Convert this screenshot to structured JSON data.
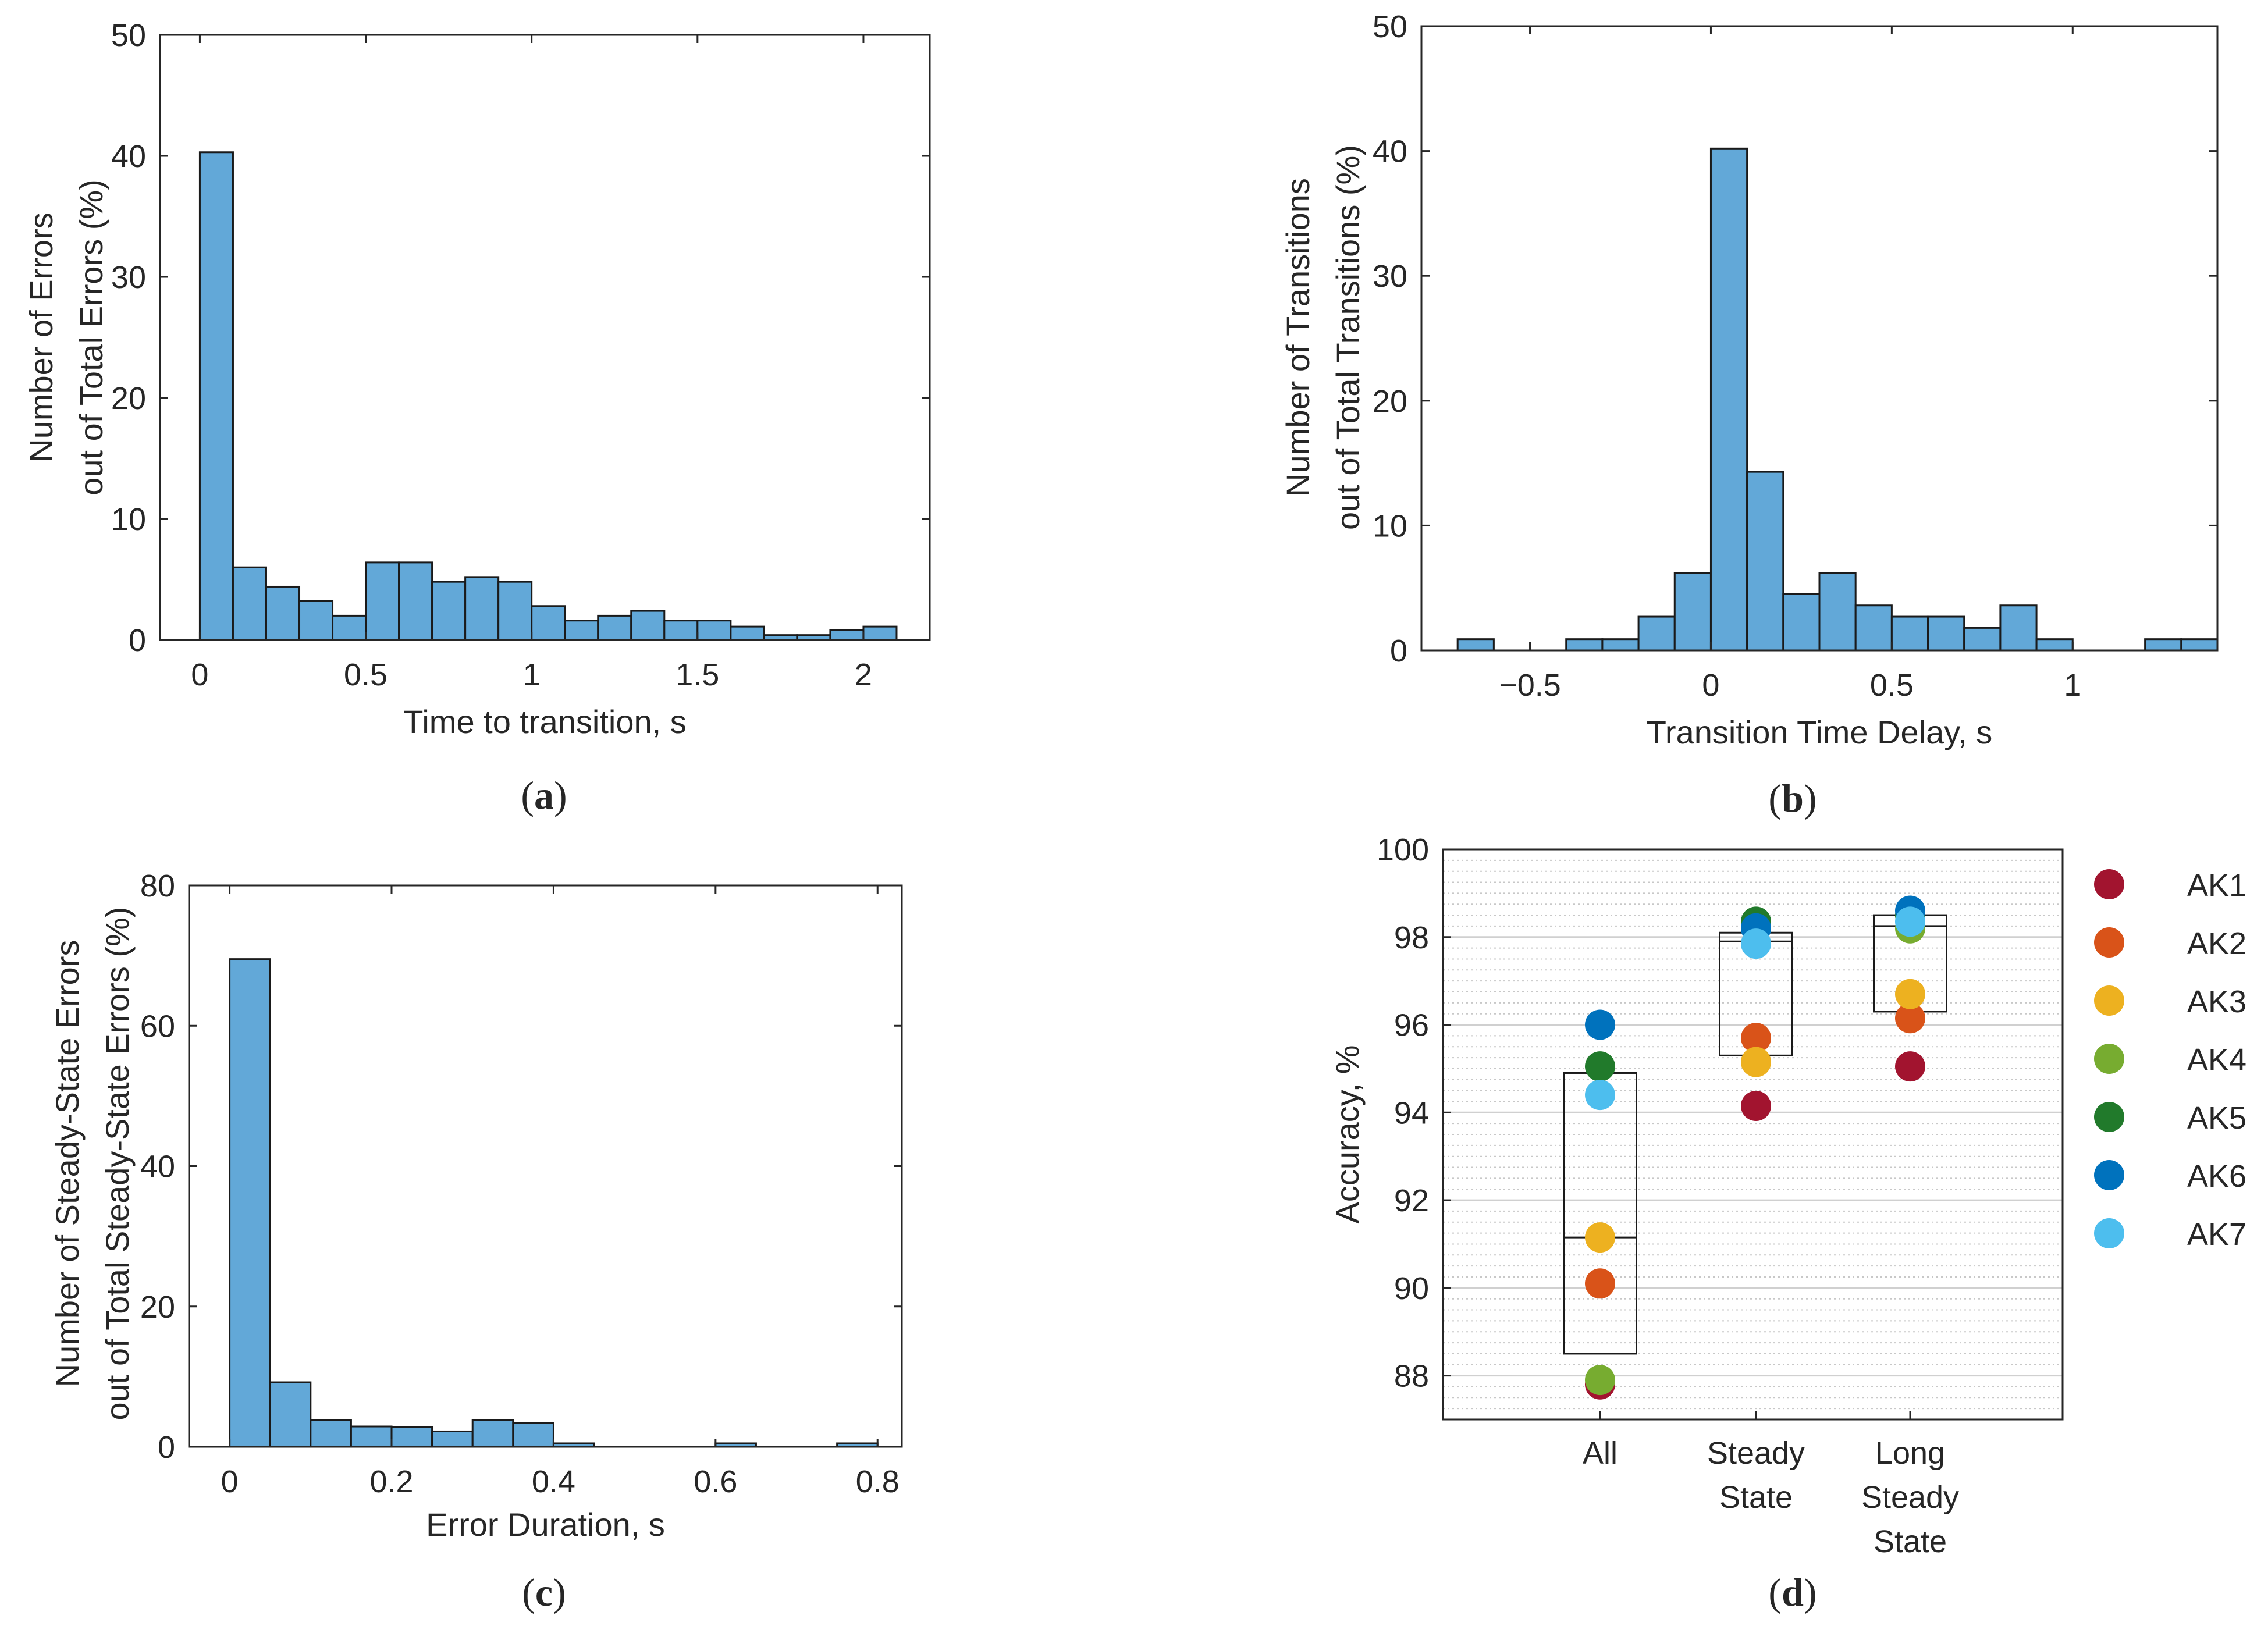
{
  "chart_data": [
    {
      "id": "a",
      "type": "bar",
      "panel_label": "(a)",
      "panel_label_letter": "a",
      "title": "",
      "xlabel": "Time to transition, s",
      "ylabel": [
        "Number of Errors",
        "out of Total Errors (%)"
      ],
      "xlim": [
        -0.12,
        2.2
      ],
      "ylim": [
        0,
        50
      ],
      "xticks": [
        0,
        0.5,
        1,
        1.5,
        2
      ],
      "xtick_labels": [
        "0",
        "0.5",
        "1",
        "1.5",
        "2"
      ],
      "yticks": [
        0,
        10,
        20,
        30,
        40,
        50
      ],
      "ytick_labels": [
        "0",
        "10",
        "20",
        "30",
        "40",
        "50"
      ],
      "bin_width": 0.1,
      "bin_start": 0,
      "values": [
        40.3,
        6.0,
        4.4,
        3.2,
        2.0,
        6.4,
        6.4,
        4.8,
        5.2,
        4.8,
        2.8,
        1.6,
        2.0,
        2.4,
        1.6,
        1.6,
        1.1,
        0.4,
        0.4,
        0.8,
        1.1
      ]
    },
    {
      "id": "b",
      "type": "bar",
      "panel_label": "(b)",
      "panel_label_letter": "b",
      "title": "",
      "xlabel": "Transition Time Delay, s",
      "ylabel": [
        "Number of Transitions",
        "out of Total Transitions (%)"
      ],
      "xlim": [
        -0.8,
        1.4
      ],
      "ylim": [
        0,
        50
      ],
      "xticks": [
        -0.5,
        0,
        0.5,
        1
      ],
      "xtick_labels": [
        "−0.5",
        "0",
        "0.5",
        "1"
      ],
      "yticks": [
        0,
        10,
        20,
        30,
        40,
        50
      ],
      "ytick_labels": [
        "0",
        "10",
        "20",
        "30",
        "40",
        "50"
      ],
      "bin_width": 0.1,
      "bin_start": -0.8,
      "values": [
        0,
        0.9,
        0,
        0,
        0.9,
        0.9,
        2.7,
        6.2,
        40.2,
        14.3,
        4.5,
        6.2,
        3.6,
        2.7,
        2.7,
        1.8,
        3.6,
        0.9,
        0,
        0,
        0.9,
        0.9
      ]
    },
    {
      "id": "c",
      "type": "bar",
      "panel_label": "(c)",
      "panel_label_letter": "c",
      "title": "",
      "xlabel": "Error Duration, s",
      "ylabel": [
        "Number of Steady-State Errors",
        "out of Total Steady-State Errors (%)"
      ],
      "xlim": [
        -0.05,
        0.83
      ],
      "ylim": [
        0,
        80
      ],
      "xticks": [
        0,
        0.2,
        0.4,
        0.6,
        0.8
      ],
      "xtick_labels": [
        "0",
        "0.2",
        "0.4",
        "0.6",
        "0.8"
      ],
      "yticks": [
        0,
        20,
        40,
        60,
        80
      ],
      "ytick_labels": [
        "0",
        "20",
        "40",
        "60",
        "80"
      ],
      "bin_width": 0.05,
      "bin_start": 0,
      "values": [
        69.5,
        9.2,
        3.8,
        2.9,
        2.8,
        2.2,
        3.8,
        3.4,
        0.5,
        0,
        0,
        0,
        0.5,
        0,
        0,
        0.5
      ]
    },
    {
      "id": "d",
      "type": "scatter",
      "panel_label": "(d)",
      "panel_label_letter": "d",
      "title": "",
      "xlabel": "",
      "ylabel": "Accuracy, %",
      "ylim": [
        87,
        100
      ],
      "yticks": [
        88,
        90,
        92,
        94,
        96,
        98,
        100
      ],
      "ytick_labels": [
        "88",
        "90",
        "92",
        "94",
        "96",
        "98",
        "100"
      ],
      "categories": [
        [
          "All"
        ],
        [
          "Steady",
          "State"
        ],
        [
          "Long",
          "Steady",
          "State"
        ]
      ],
      "boxes": [
        {
          "q1": 88.5,
          "median": 91.15,
          "q3": 94.9
        },
        {
          "q1": 95.3,
          "median": 97.9,
          "q3": 98.1
        },
        {
          "q1": 96.3,
          "median": 98.25,
          "q3": 98.5
        }
      ],
      "series": [
        {
          "name": "AK1",
          "color": "#A2142F",
          "values": [
            87.8,
            94.15,
            95.05
          ]
        },
        {
          "name": "AK2",
          "color": "#D95319",
          "values": [
            90.1,
            95.7,
            96.15
          ]
        },
        {
          "name": "AK3",
          "color": "#EDB120",
          "values": [
            91.15,
            95.15,
            96.7
          ]
        },
        {
          "name": "AK4",
          "color": "#77AC30",
          "values": [
            87.9,
            98.3,
            98.2
          ]
        },
        {
          "name": "AK5",
          "color": "#217A2B",
          "values": [
            95.05,
            98.35,
            98.5
          ]
        },
        {
          "name": "AK6",
          "color": "#0072BD",
          "values": [
            96.0,
            98.2,
            98.6
          ]
        },
        {
          "name": "AK7",
          "color": "#4DBEEE",
          "values": [
            94.4,
            97.85,
            98.35
          ]
        }
      ],
      "legend_position": "right",
      "grid": true
    }
  ],
  "colors": {
    "bar_fill": "#62A8D8",
    "bar_edge": "#1a1a1a",
    "axis": "#262626",
    "grid_major": "#d0d0d0",
    "grid_minor": "#c8c8c8"
  }
}
